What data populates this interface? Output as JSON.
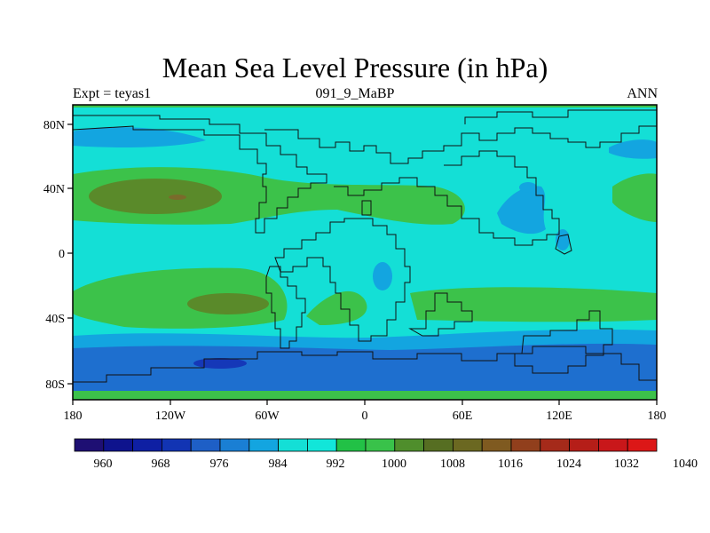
{
  "title": "Mean Sea Level Pressure (in hPa)",
  "left_subtitle": "Expt = teyas1",
  "center_subtitle": "091_9_MaBP",
  "right_subtitle": "ANN",
  "map": {
    "projection": "cylindrical-equidistant",
    "lon_range": [
      -180,
      180
    ],
    "lat_range": [
      -90,
      90
    ],
    "x_ticks": [
      "180",
      "120W",
      "60W",
      "0",
      "60E",
      "120E",
      "180"
    ],
    "y_ticks": [
      "80N",
      "40N",
      "0",
      "40S",
      "80S"
    ],
    "field_colors": {
      "high_core": "#7a6b2b",
      "high_mid": "#5a8a2a",
      "high": "#3cc24a",
      "background": "#14dfd6",
      "low_light": "#13a5e0",
      "low": "#1e6fcf",
      "low_deep": "#1538b8",
      "low_core": "#0f1fa0"
    }
  },
  "colorbar": {
    "labels": [
      "960",
      "968",
      "976",
      "984",
      "992",
      "1000",
      "1008",
      "1016",
      "1024",
      "1032",
      "1040"
    ],
    "colors": [
      "#1e0f73",
      "#0e138d",
      "#0e1fa3",
      "#1234b3",
      "#1e5fc6",
      "#1a7fd4",
      "#13a5e0",
      "#14dfd6",
      "#12e6d9",
      "#22c146",
      "#39c24a",
      "#4f8e2c",
      "#566e22",
      "#6b6821",
      "#7f5a20",
      "#913f1c",
      "#a52a1a",
      "#b51e18",
      "#c9171a",
      "#dc1717"
    ]
  }
}
